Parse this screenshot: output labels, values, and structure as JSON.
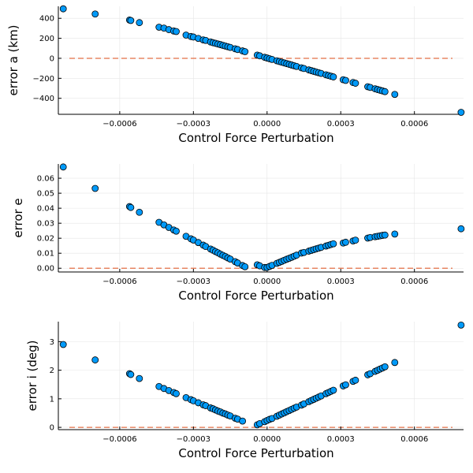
{
  "chart_data": [
    {
      "type": "scatter",
      "xlabel": "Control Force Perturbation",
      "ylabel": "error a (km)",
      "xlim": [
        -0.00085,
        0.0008
      ],
      "ylim": [
        -560,
        520
      ],
      "xticks": [
        -0.0006,
        -0.0003,
        0.0,
        0.0003,
        0.0006
      ],
      "xtick_labels": [
        "−0.0006",
        "−0.0003",
        "0.0000",
        "0.0003",
        "0.0006"
      ],
      "yticks": [
        -400,
        -200,
        0,
        200,
        400
      ],
      "ytick_labels": [
        "−400",
        "−200",
        "0",
        "200",
        "400"
      ],
      "grid": true,
      "reference_line": {
        "y": 0,
        "style": "dashed",
        "color": "#e26f46"
      },
      "marker_color": "#009af9",
      "x": [
        -0.00083,
        -0.0007,
        -0.00056,
        -0.000555,
        -0.00052,
        -0.00044,
        -0.00042,
        -0.0004,
        -0.00038,
        -0.00037,
        -0.00033,
        -0.00031,
        -0.0003,
        -0.00028,
        -0.00026,
        -0.00025,
        -0.00023,
        -0.00022,
        -0.00021,
        -0.0002,
        -0.00019,
        -0.00018,
        -0.00017,
        -0.00016,
        -0.00015,
        -0.00013,
        -0.00012,
        -0.0001,
        -9e-05,
        -4e-05,
        -3e-05,
        -1e-05,
        0.0,
        1e-05,
        2e-05,
        4e-05,
        5e-05,
        6e-05,
        7e-05,
        8e-05,
        9e-05,
        0.0001,
        0.00011,
        0.00012,
        0.00014,
        0.00015,
        0.00017,
        0.00018,
        0.00019,
        0.0002,
        0.00021,
        0.00022,
        0.00024,
        0.00025,
        0.00026,
        0.00027,
        0.00031,
        0.00032,
        0.00035,
        0.00036,
        0.00041,
        0.00042,
        0.00044,
        0.00045,
        0.00046,
        0.00047,
        0.00048,
        0.00052,
        0.00079
      ],
      "y": [
        495,
        443,
        383,
        378,
        357,
        311,
        302,
        287,
        273,
        268,
        232,
        218,
        213,
        199,
        184,
        179,
        163,
        156,
        150,
        143,
        137,
        130,
        123,
        116,
        109,
        95,
        88,
        74,
        67,
        32,
        25,
        10,
        3,
        -4,
        -11,
        -25,
        -32,
        -39,
        -46,
        -53,
        -60,
        -67,
        -74,
        -81,
        -95,
        -102,
        -116,
        -123,
        -130,
        -137,
        -144,
        -151,
        -165,
        -172,
        -179,
        -186,
        -214,
        -221,
        -242,
        -249,
        -284,
        -291,
        -305,
        -312,
        -319,
        -326,
        -333,
        -361,
        -540
      ]
    },
    {
      "type": "scatter",
      "xlabel": "Control Force Perturbation",
      "ylabel": "error e",
      "xlim": [
        -0.00085,
        0.0008
      ],
      "ylim": [
        -0.0025,
        0.0695
      ],
      "xticks": [
        -0.0006,
        -0.0003,
        0.0,
        0.0003,
        0.0006
      ],
      "xtick_labels": [
        "−0.0006",
        "−0.0003",
        "0.0000",
        "0.0003",
        "0.0006"
      ],
      "yticks": [
        0.0,
        0.01,
        0.02,
        0.03,
        0.04,
        0.05,
        0.06
      ],
      "ytick_labels": [
        "0.00",
        "0.01",
        "0.02",
        "0.03",
        "0.04",
        "0.05",
        "0.06"
      ],
      "grid": true,
      "reference_line": {
        "y": 0,
        "style": "dashed",
        "color": "#e26f46"
      },
      "marker_color": "#009af9",
      "x": [
        -0.00083,
        -0.0007,
        -0.00056,
        -0.000555,
        -0.00052,
        -0.00044,
        -0.00042,
        -0.0004,
        -0.00038,
        -0.00037,
        -0.00033,
        -0.00031,
        -0.0003,
        -0.00028,
        -0.00026,
        -0.00025,
        -0.00023,
        -0.00022,
        -0.00021,
        -0.0002,
        -0.00019,
        -0.00018,
        -0.00017,
        -0.00016,
        -0.00015,
        -0.00013,
        -0.00012,
        -0.0001,
        -9e-05,
        -4e-05,
        -3e-05,
        -1e-05,
        0.0,
        1e-05,
        2e-05,
        4e-05,
        5e-05,
        6e-05,
        7e-05,
        8e-05,
        9e-05,
        0.0001,
        0.00011,
        0.00012,
        0.00014,
        0.00015,
        0.00017,
        0.00018,
        0.00019,
        0.0002,
        0.00021,
        0.00022,
        0.00024,
        0.00025,
        0.00026,
        0.00027,
        0.00031,
        0.00032,
        0.00035,
        0.00036,
        0.00041,
        0.00042,
        0.00044,
        0.00045,
        0.00046,
        0.00047,
        0.00048,
        0.00052,
        0.00079
      ],
      "y": [
        0.0675,
        0.0532,
        0.0411,
        0.0405,
        0.0373,
        0.0306,
        0.0289,
        0.0272,
        0.0255,
        0.0247,
        0.0213,
        0.0196,
        0.0188,
        0.0171,
        0.0154,
        0.0145,
        0.0128,
        0.012,
        0.0111,
        0.0103,
        0.0094,
        0.0086,
        0.0078,
        0.0069,
        0.0061,
        0.0044,
        0.0035,
        0.0018,
        0.001,
        0.0023,
        0.0016,
        0.0005,
        0.0005,
        0.0012,
        0.0019,
        0.0033,
        0.0039,
        0.0046,
        0.0053,
        0.006,
        0.0066,
        0.0073,
        0.008,
        0.0087,
        0.0101,
        0.0105,
        0.0114,
        0.0119,
        0.0124,
        0.0129,
        0.0134,
        0.0139,
        0.0148,
        0.0153,
        0.0158,
        0.0163,
        0.0168,
        0.0173,
        0.0182,
        0.0187,
        0.0201,
        0.0205,
        0.021,
        0.0213,
        0.0216,
        0.0219,
        0.0221,
        0.0228,
        0.0263
      ]
    },
    {
      "type": "scatter",
      "xlabel": "Control Force Perturbation",
      "ylabel": "error i (deg)",
      "xlim": [
        -0.00085,
        0.0008
      ],
      "ylim": [
        -0.08,
        3.7
      ],
      "xticks": [
        -0.0006,
        -0.0003,
        0.0,
        0.0003,
        0.0006
      ],
      "xtick_labels": [
        "−0.0006",
        "−0.0003",
        "0.0000",
        "0.0003",
        "0.0006"
      ],
      "yticks": [
        0,
        1,
        2,
        3
      ],
      "ytick_labels": [
        "0",
        "1",
        "2",
        "3"
      ],
      "grid": true,
      "reference_line": {
        "y": 0,
        "style": "dashed",
        "color": "#e26f46"
      },
      "marker_color": "#009af9",
      "x": [
        -0.00083,
        -0.0007,
        -0.00056,
        -0.000555,
        -0.00052,
        -0.00044,
        -0.00042,
        -0.0004,
        -0.00038,
        -0.00037,
        -0.00033,
        -0.00031,
        -0.0003,
        -0.00028,
        -0.00026,
        -0.00025,
        -0.00023,
        -0.00022,
        -0.00021,
        -0.0002,
        -0.00019,
        -0.00018,
        -0.00017,
        -0.00016,
        -0.00015,
        -0.00013,
        -0.00012,
        -0.0001,
        -4e-05,
        -3e-05,
        -1e-05,
        0.0,
        1e-05,
        2e-05,
        4e-05,
        5e-05,
        6e-05,
        7e-05,
        8e-05,
        9e-05,
        0.0001,
        0.00011,
        0.00012,
        0.00014,
        0.00015,
        0.00017,
        0.00018,
        0.00019,
        0.0002,
        0.00021,
        0.00022,
        0.00024,
        0.00025,
        0.00026,
        0.00027,
        0.00031,
        0.00032,
        0.00035,
        0.00036,
        0.00041,
        0.00042,
        0.00044,
        0.00045,
        0.00046,
        0.00047,
        0.00048,
        0.00052,
        0.00079
      ],
      "y": [
        2.9,
        2.36,
        1.88,
        1.85,
        1.71,
        1.43,
        1.36,
        1.29,
        1.22,
        1.18,
        1.04,
        0.97,
        0.93,
        0.86,
        0.79,
        0.76,
        0.68,
        0.65,
        0.61,
        0.57,
        0.54,
        0.5,
        0.47,
        0.43,
        0.4,
        0.32,
        0.29,
        0.22,
        0.09,
        0.13,
        0.2,
        0.24,
        0.28,
        0.31,
        0.39,
        0.43,
        0.47,
        0.51,
        0.55,
        0.59,
        0.63,
        0.67,
        0.71,
        0.78,
        0.82,
        0.9,
        0.94,
        0.98,
        1.02,
        1.06,
        1.1,
        1.18,
        1.22,
        1.26,
        1.3,
        1.45,
        1.49,
        1.61,
        1.65,
        1.84,
        1.88,
        1.96,
        2.0,
        2.04,
        2.08,
        2.12,
        2.27,
        3.58
      ]
    }
  ]
}
